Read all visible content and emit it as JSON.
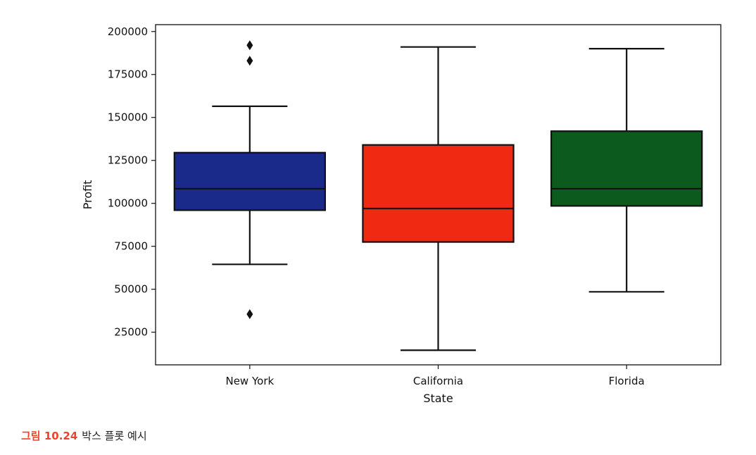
{
  "chart_data": {
    "type": "box",
    "xlabel": "State",
    "ylabel": "Profit",
    "ylim": [
      6000,
      204000
    ],
    "yticks": [
      25000,
      50000,
      75000,
      100000,
      125000,
      150000,
      175000,
      200000
    ],
    "grid": false,
    "categories": [
      "New York",
      "California",
      "Florida"
    ],
    "boxes": [
      {
        "category": "New York",
        "color": "#1a2a8a",
        "whisker_low": 64500,
        "q1": 96000,
        "median": 108500,
        "q3": 129500,
        "whisker_high": 156500,
        "outliers": [
          192000,
          183000,
          35500
        ]
      },
      {
        "category": "California",
        "color": "#f02a12",
        "whisker_low": 14500,
        "q1": 77500,
        "median": 97000,
        "q3": 134000,
        "whisker_high": 191000,
        "outliers": []
      },
      {
        "category": "Florida",
        "color": "#0d5a1e",
        "whisker_low": 48500,
        "q1": 98500,
        "median": 108500,
        "q3": 142000,
        "whisker_high": 190000,
        "outliers": []
      }
    ]
  },
  "caption": {
    "figure_number": "그림 10.24",
    "text": "박스 플롯 예시"
  }
}
